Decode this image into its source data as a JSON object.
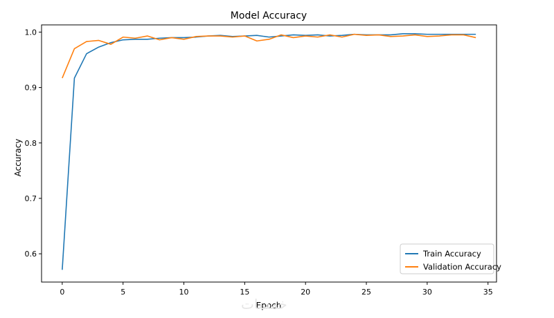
{
  "chart_data": {
    "type": "line",
    "title": "Model Accuracy",
    "xlabel": "Epoch",
    "ylabel": "Accuracy",
    "xlim": [
      -1.7,
      35.7
    ],
    "ylim": [
      0.549,
      1.013
    ],
    "xticks": [
      0,
      5,
      10,
      15,
      20,
      25,
      30,
      35
    ],
    "yticks": [
      0.6,
      0.7,
      0.8,
      0.9,
      1.0
    ],
    "xtick_labels": [
      "0",
      "5",
      "10",
      "15",
      "20",
      "25",
      "30",
      "35"
    ],
    "ytick_labels": [
      "0.6",
      "0.7",
      "0.8",
      "0.9",
      "1.0"
    ],
    "grid": false,
    "legend_position": "lower right",
    "x": [
      0,
      1,
      2,
      3,
      4,
      5,
      6,
      7,
      8,
      9,
      10,
      11,
      12,
      13,
      14,
      15,
      16,
      17,
      18,
      19,
      20,
      21,
      22,
      23,
      24,
      25,
      26,
      27,
      28,
      29,
      30,
      31,
      32,
      33,
      34
    ],
    "series": [
      {
        "name": "Train Accuracy",
        "color": "#1f77b4",
        "values": [
          0.571,
          0.917,
          0.961,
          0.973,
          0.981,
          0.986,
          0.987,
          0.987,
          0.989,
          0.99,
          0.99,
          0.991,
          0.993,
          0.994,
          0.992,
          0.993,
          0.994,
          0.991,
          0.993,
          0.995,
          0.994,
          0.995,
          0.993,
          0.994,
          0.996,
          0.995,
          0.995,
          0.995,
          0.997,
          0.997,
          0.996,
          0.996,
          0.996,
          0.996,
          0.996
        ]
      },
      {
        "name": "Validation Accuracy",
        "color": "#ff7f0e",
        "values": [
          0.917,
          0.97,
          0.983,
          0.985,
          0.978,
          0.991,
          0.989,
          0.993,
          0.986,
          0.99,
          0.987,
          0.992,
          0.993,
          0.993,
          0.991,
          0.993,
          0.984,
          0.987,
          0.995,
          0.99,
          0.993,
          0.991,
          0.995,
          0.991,
          0.996,
          0.994,
          0.995,
          0.992,
          0.993,
          0.995,
          0.992,
          0.993,
          0.995,
          0.995,
          0.99
        ]
      }
    ]
  },
  "watermark": {
    "text": "خمسات"
  }
}
